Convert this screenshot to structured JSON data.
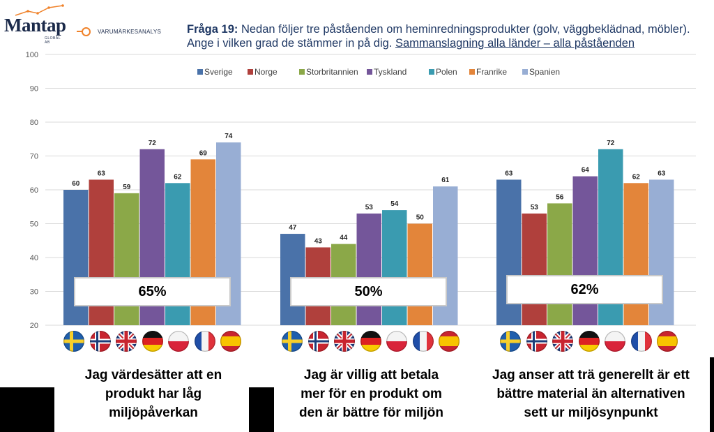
{
  "brand": {
    "name": "Mantap",
    "sub": "GLOBAL AB",
    "tag": "VARUMÄRKESANALYS"
  },
  "question": {
    "label": "Fråga 19:",
    "text": "Nedan följer tre påståenden om heminredningsprodukter (golv, väggbeklädnad, möbler). Ange i vilken grad de stämmer in på dig.",
    "link": "Sammanslagning alla länder – alla påståenden"
  },
  "chart_data": {
    "type": "bar",
    "ylim": [
      20,
      100
    ],
    "yticks": [
      20,
      30,
      40,
      50,
      60,
      70,
      80,
      90,
      100
    ],
    "grid": true,
    "legend_position": "top",
    "categories": [
      "Jag värdesätter att en produkt har låg miljöpåverkan",
      "Jag är villig att betala mer för en produkt om den är bättre för miljön",
      "Jag anser att trä generellt är ett bättre material än alternativen sett ur miljösynpunkt"
    ],
    "series": [
      {
        "name": "Sverige",
        "color": "#4a72a9",
        "values": [
          60,
          47,
          63
        ]
      },
      {
        "name": "Norge",
        "color": "#b0403c",
        "values": [
          63,
          43,
          53
        ]
      },
      {
        "name": "Storbritannien",
        "color": "#8ba848",
        "values": [
          59,
          44,
          56
        ]
      },
      {
        "name": "Tyskland",
        "color": "#74569a",
        "values": [
          72,
          53,
          64
        ]
      },
      {
        "name": "Polen",
        "color": "#3a9bb0",
        "values": [
          62,
          54,
          72
        ]
      },
      {
        "name": "Franrike",
        "color": "#e3853a",
        "values": [
          69,
          50,
          62
        ]
      },
      {
        "name": "Spanien",
        "color": "#98aed4",
        "values": [
          74,
          61,
          63
        ]
      }
    ],
    "totals": [
      "65%",
      "50%",
      "62%"
    ]
  },
  "captions": [
    [
      "Jag värdesätter att en",
      "produkt har låg",
      "miljöpåverkan"
    ],
    [
      "Jag är villig att betala",
      "mer för en produkt om",
      "den är bättre för miljön"
    ],
    [
      "Jag anser att trä generellt är ett",
      "bättre material än alternativen",
      "sett ur miljösynpunkt"
    ]
  ],
  "flags": [
    "sweden-flag-icon",
    "norway-flag-icon",
    "uk-flag-icon",
    "germany-flag-icon",
    "poland-flag-icon",
    "france-flag-icon",
    "spain-flag-icon"
  ]
}
